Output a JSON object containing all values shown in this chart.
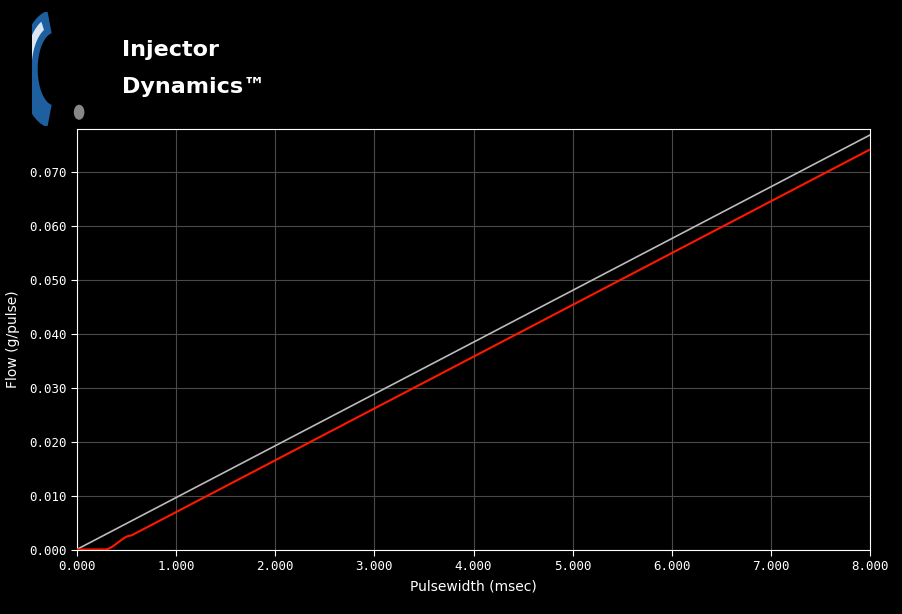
{
  "background_color": "#000000",
  "plot_bg_color": "#000000",
  "grid_color": "#4a4a4a",
  "axis_color": "#ffffff",
  "tick_color": "#ffffff",
  "label_color": "#ffffff",
  "xlabel": "Pulsewidth (msec)",
  "ylabel": "Flow (g/pulse)",
  "xlim": [
    0.0,
    8.0
  ],
  "ylim": [
    0.0,
    0.078
  ],
  "x_ticks": [
    0.0,
    1.0,
    2.0,
    3.0,
    4.0,
    5.0,
    6.0,
    7.0,
    8.0
  ],
  "x_tick_labels": [
    "0.000",
    "1.000",
    "2.000",
    "3.000",
    "4.000",
    "5.000",
    "6.000",
    "7.000",
    "8.000"
  ],
  "y_ticks": [
    0.0,
    0.01,
    0.02,
    0.03,
    0.04,
    0.05,
    0.06,
    0.07
  ],
  "y_tick_labels": [
    "0.000",
    "0.010",
    "0.020",
    "0.030",
    "0.040",
    "0.050",
    "0.060",
    "0.070"
  ],
  "white_line_slope": 0.009615,
  "white_line_color": "#bbbbbb",
  "white_line_linewidth": 1.2,
  "red_line_color": "#ff1800",
  "red_line_linewidth": 1.5,
  "dead_time": 0.28,
  "linear_slope": 0.009615,
  "nonlinear_end": 0.55,
  "logo_text_line1": "Injector",
  "logo_text_line2": "Dynamics",
  "logo_tm": "™",
  "logo_text_color": "#ffffff",
  "logo_fontsize": 16,
  "figsize": [
    9.02,
    6.14
  ],
  "dpi": 100
}
